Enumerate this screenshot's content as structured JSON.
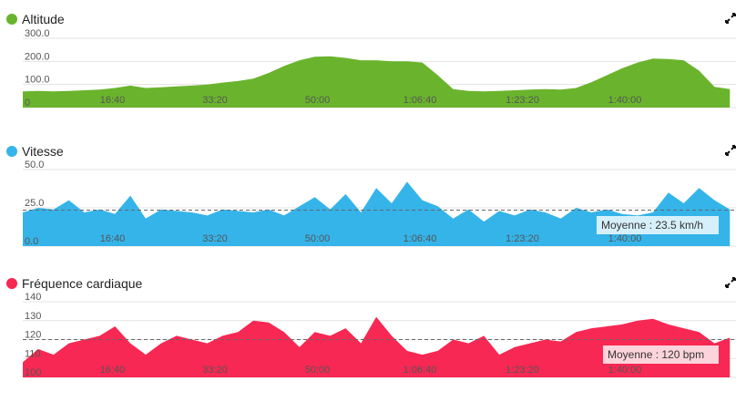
{
  "chart_data": [
    {
      "type": "area",
      "title": "Altitude",
      "color": "#6ab42d",
      "x": [
        0,
        150,
        300,
        450,
        600,
        750,
        900,
        1050,
        1200,
        1350,
        1500,
        1650,
        1800,
        1950,
        2100,
        2250,
        2400,
        2550,
        2700,
        2850,
        3000,
        3150,
        3300,
        3450,
        3600,
        3750,
        3900,
        4050,
        4200,
        4350,
        4500,
        4650,
        4800,
        4950,
        5100,
        5250,
        5400,
        5550,
        5700,
        5850,
        6000,
        6150,
        6300,
        6450,
        6600,
        6750,
        6900
      ],
      "values": [
        70,
        72,
        70,
        72,
        75,
        78,
        85,
        95,
        85,
        88,
        92,
        95,
        100,
        108,
        115,
        125,
        150,
        180,
        205,
        220,
        222,
        215,
        205,
        205,
        200,
        200,
        195,
        140,
        80,
        72,
        70,
        72,
        75,
        78,
        80,
        78,
        85,
        110,
        140,
        170,
        195,
        212,
        210,
        205,
        160,
        90,
        80
      ],
      "xlim": [
        0,
        6960
      ],
      "xticks": [
        {
          "value": 1000,
          "label": "16:40"
        },
        {
          "value": 2000,
          "label": "33:20"
        },
        {
          "value": 3000,
          "label": "50:00"
        },
        {
          "value": 4000,
          "label": "1:06:40"
        },
        {
          "value": 5000,
          "label": "1:23:20"
        },
        {
          "value": 6000,
          "label": "1:40:00"
        }
      ],
      "ylim": [
        0,
        300
      ],
      "yticks": [
        0,
        {
          "value": 100,
          "label": "100.0"
        },
        {
          "value": 200,
          "label": "200.0"
        },
        {
          "value": 300,
          "label": "300.0"
        }
      ]
    },
    {
      "type": "area",
      "title": "Vitesse",
      "color": "#35b4e9",
      "x": [
        0,
        150,
        300,
        450,
        600,
        750,
        900,
        1050,
        1200,
        1350,
        1500,
        1650,
        1800,
        1950,
        2100,
        2250,
        2400,
        2550,
        2700,
        2850,
        3000,
        3150,
        3300,
        3450,
        3600,
        3750,
        3900,
        4050,
        4200,
        4350,
        4500,
        4650,
        4800,
        4950,
        5100,
        5250,
        5400,
        5550,
        5700,
        5850,
        6000,
        6150,
        6300,
        6450,
        6600,
        6750,
        6900
      ],
      "values": [
        22,
        25,
        24,
        30,
        22,
        24,
        21,
        33,
        18,
        24,
        23,
        22,
        20,
        24,
        23,
        22,
        24,
        20,
        26,
        32,
        24,
        34,
        22,
        38,
        28,
        42,
        30,
        26,
        18,
        24,
        16,
        23,
        20,
        24,
        22,
        18,
        25,
        22,
        24,
        21,
        20,
        22,
        35,
        28,
        38,
        30,
        24
      ],
      "average": {
        "value": 23.5,
        "label": "Moyenne : 23.5 km/h"
      },
      "xlim": [
        0,
        6960
      ],
      "xticks": [
        {
          "value": 1000,
          "label": "16:40"
        },
        {
          "value": 2000,
          "label": "33:20"
        },
        {
          "value": 3000,
          "label": "50:00"
        },
        {
          "value": 4000,
          "label": "1:06:40"
        },
        {
          "value": 5000,
          "label": "1:23:20"
        },
        {
          "value": 6000,
          "label": "1:40:00"
        }
      ],
      "ylim": [
        0,
        50
      ],
      "yticks": [
        {
          "value": 0,
          "label": "0.0"
        },
        {
          "value": 25,
          "label": "25.0"
        },
        {
          "value": 50,
          "label": "50.0"
        }
      ]
    },
    {
      "type": "area",
      "title": "Fréquence cardiaque",
      "color": "#f72853",
      "x": [
        0,
        150,
        300,
        450,
        600,
        750,
        900,
        1050,
        1200,
        1350,
        1500,
        1650,
        1800,
        1950,
        2100,
        2250,
        2400,
        2550,
        2700,
        2850,
        3000,
        3150,
        3300,
        3450,
        3600,
        3750,
        3900,
        4050,
        4200,
        4350,
        4500,
        4650,
        4800,
        4950,
        5100,
        5250,
        5400,
        5550,
        5700,
        5850,
        6000,
        6150,
        6300,
        6450,
        6600,
        6750,
        6900
      ],
      "values": [
        108,
        115,
        112,
        118,
        120,
        122,
        127,
        118,
        112,
        118,
        122,
        120,
        118,
        122,
        124,
        130,
        129,
        124,
        116,
        124,
        122,
        126,
        118,
        132,
        122,
        114,
        112,
        114,
        120,
        118,
        122,
        112,
        116,
        118,
        120,
        119,
        124,
        126,
        127,
        128,
        130,
        131,
        128,
        126,
        124,
        118,
        121
      ],
      "average": {
        "value": 120,
        "label": "Moyenne : 120 bpm"
      },
      "xlim": [
        0,
        6960
      ],
      "xticks": [
        {
          "value": 1000,
          "label": "16:40"
        },
        {
          "value": 2000,
          "label": "33:20"
        },
        {
          "value": 3000,
          "label": "50:00"
        },
        {
          "value": 4000,
          "label": "1:06:40"
        },
        {
          "value": 5000,
          "label": "1:23:20"
        },
        {
          "value": 6000,
          "label": "1:40:00"
        }
      ],
      "ylim": [
        100,
        140
      ],
      "yticks": [
        100,
        110,
        120,
        130,
        140
      ]
    }
  ]
}
